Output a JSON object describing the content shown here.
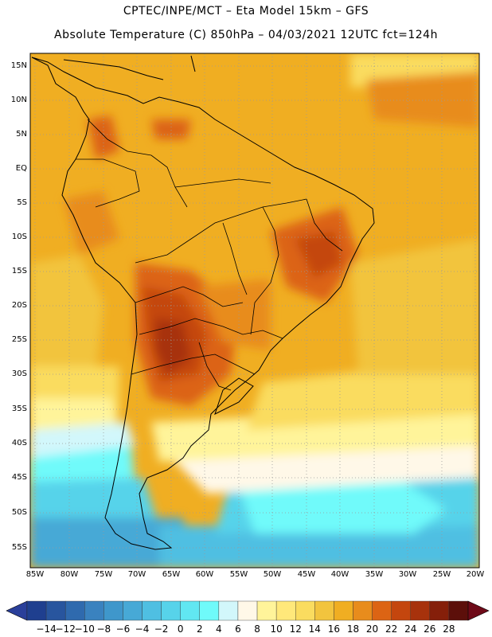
{
  "header": {
    "title_line1": "CPTEC/INPE/MCT –   Eta Model 15km – GFS",
    "title_line2": "Absolute Temperature (C) 850hPa – 04/03/2021 12UTC fct=124h"
  },
  "axes": {
    "lat_labels": [
      "15N",
      "10N",
      "5N",
      "EQ",
      "5S",
      "10S",
      "15S",
      "20S",
      "25S",
      "30S",
      "35S",
      "40S",
      "45S",
      "50S",
      "55S"
    ],
    "lon_labels": [
      "85W",
      "80W",
      "75W",
      "70W",
      "65W",
      "60W",
      "55W",
      "50W",
      "45W",
      "40W",
      "35W",
      "30W",
      "25W",
      "20W"
    ]
  },
  "colorbar": {
    "labels": [
      "-14",
      "-12",
      "-10",
      "-8",
      "-6",
      "-4",
      "-2",
      "0",
      "2",
      "4",
      "6",
      "8",
      "10",
      "12",
      "14",
      "16",
      "18",
      "20",
      "22",
      "24",
      "26",
      "28"
    ],
    "colors": [
      "#1f3f8f",
      "#28559e",
      "#2f6aae",
      "#3a82bf",
      "#3f97cb",
      "#47a9d6",
      "#4fbfe2",
      "#57d3ea",
      "#61e7f2",
      "#6ffafa",
      "#d2f7fb",
      "#fff8e8",
      "#fff49a",
      "#ffe87a",
      "#fadc5f",
      "#f2c43e",
      "#f0ae22",
      "#e88c1c",
      "#dc6414",
      "#c4460e",
      "#a7320c",
      "#851f0a",
      "#5c0f0a"
    ],
    "under_color": "#2a3f9a",
    "over_color": "#6e0a18"
  },
  "legend_meta": {
    "units": "C",
    "level": "850hPa"
  }
}
